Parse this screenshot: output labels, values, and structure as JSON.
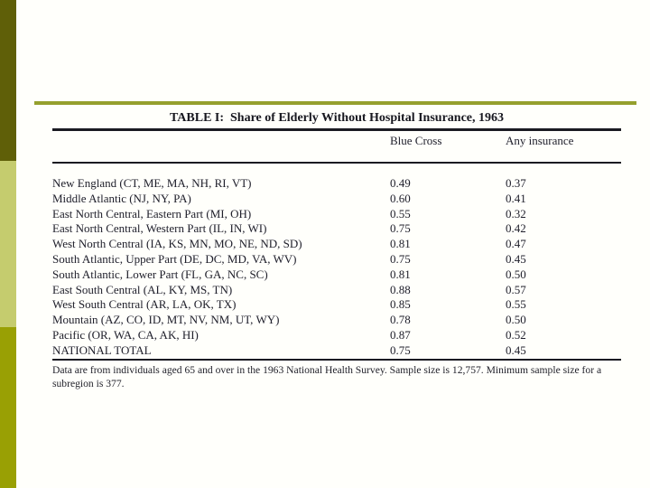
{
  "slide": {
    "background_color": "#fffffb",
    "accent_bar_colors": {
      "top": "#5f5f08",
      "middle": "#c5cc6e",
      "bottom": "#99a004"
    },
    "divider_color": "#95a02d"
  },
  "table": {
    "title": "TABLE I:  Share of Elderly Without Hospital Insurance, 1963",
    "columns": [
      "Blue Cross",
      "Any insurance"
    ],
    "rows": [
      {
        "region": "New England  (CT, ME, MA, NH, RI, VT)",
        "blue_cross": "0.49",
        "any_insurance": "0.37"
      },
      {
        "region": "Middle Atlantic (NJ, NY, PA)",
        "blue_cross": "0.60",
        "any_insurance": "0.41"
      },
      {
        "region": "East North Central, Eastern Part (MI, OH)",
        "blue_cross": "0.55",
        "any_insurance": "0.32"
      },
      {
        "region": "East North Central, Western Part (IL, IN, WI)",
        "blue_cross": "0.75",
        "any_insurance": "0.42"
      },
      {
        "region": "West North Central (IA, KS, MN, MO, NE, ND, SD)",
        "blue_cross": "0.81",
        "any_insurance": "0.47"
      },
      {
        "region": "South Atlantic, Upper Part (DE, DC, MD, VA, WV)",
        "blue_cross": "0.75",
        "any_insurance": "0.45"
      },
      {
        "region": "South Atlantic, Lower Part (FL, GA, NC, SC)",
        "blue_cross": "0.81",
        "any_insurance": "0.50"
      },
      {
        "region": "East South Central (AL, KY, MS, TN)",
        "blue_cross": "0.88",
        "any_insurance": "0.57"
      },
      {
        "region": "West South Central (AR, LA, OK, TX)",
        "blue_cross": "0.85",
        "any_insurance": "0.55"
      },
      {
        "region": "Mountain (AZ, CO, ID, MT, NV, NM, UT, WY)",
        "blue_cross": "0.78",
        "any_insurance": "0.50"
      },
      {
        "region": "Pacific (OR, WA, CA, AK, HI)",
        "blue_cross": "0.87",
        "any_insurance": "0.52"
      },
      {
        "region": "NATIONAL TOTAL",
        "blue_cross": "0.75",
        "any_insurance": "0.45"
      }
    ],
    "footnote": "Data are from individuals aged 65 and over in the 1963 National Health Survey. Sample size is 12,757. Minimum sample size for a subregion is 377."
  },
  "chart_data": {
    "type": "table",
    "title": "TABLE I: Share of Elderly Without Hospital Insurance, 1963",
    "categories": [
      "New England (CT, ME, MA, NH, RI, VT)",
      "Middle Atlantic (NJ, NY, PA)",
      "East North Central, Eastern Part (MI, OH)",
      "East North Central, Western Part (IL, IN, WI)",
      "West North Central (IA, KS, MN, MO, NE, ND, SD)",
      "South Atlantic, Upper Part (DE, DC, MD, VA, WV)",
      "South Atlantic, Lower Part (FL, GA, NC, SC)",
      "East South Central (AL, KY, MS, TN)",
      "West South Central (AR, LA, OK, TX)",
      "Mountain (AZ, CO, ID, MT, NV, NM, UT, WY)",
      "Pacific (OR, WA, CA, AK, HI)",
      "NATIONAL TOTAL"
    ],
    "series": [
      {
        "name": "Blue Cross",
        "values": [
          0.49,
          0.6,
          0.55,
          0.75,
          0.81,
          0.75,
          0.81,
          0.88,
          0.85,
          0.78,
          0.87,
          0.75
        ]
      },
      {
        "name": "Any insurance",
        "values": [
          0.37,
          0.41,
          0.32,
          0.42,
          0.47,
          0.45,
          0.5,
          0.57,
          0.55,
          0.5,
          0.52,
          0.45
        ]
      }
    ],
    "footnote": "Data are from individuals aged 65 and over in the 1963 National Health Survey. Sample size is 12,757. Minimum sample size for a subregion is 377."
  }
}
